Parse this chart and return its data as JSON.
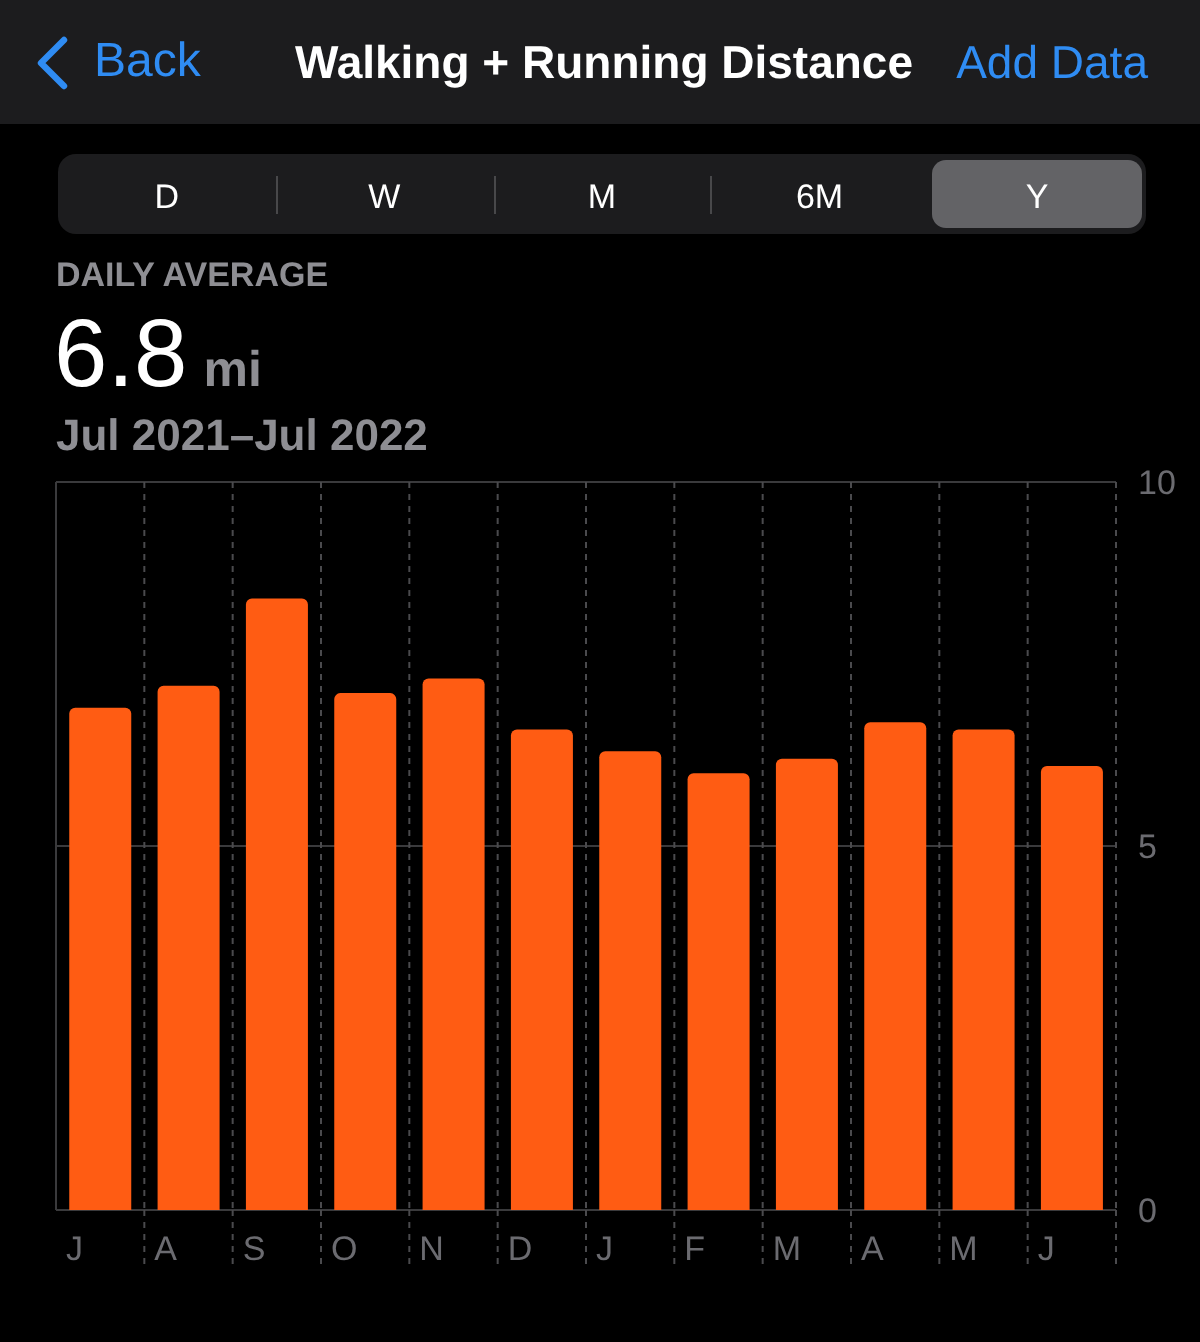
{
  "chart_data": {
    "type": "bar",
    "title": "Walking + Running Distance",
    "subtitle": "Jul 2021–Jul 2022",
    "annotations": [
      "Back",
      "Add Data",
      "D",
      "W",
      "M",
      "6M",
      "Y",
      "DAILY AVERAGE",
      "6.8",
      "mi"
    ],
    "categories": [
      "J",
      "A",
      "S",
      "O",
      "N",
      "D",
      "J",
      "F",
      "M",
      "A",
      "M",
      "J"
    ],
    "values": [
      6.9,
      7.2,
      8.4,
      7.1,
      7.3,
      6.6,
      6.3,
      6.0,
      6.2,
      6.7,
      6.6,
      6.1
    ],
    "color": "#ff5c13",
    "ylim": [
      0,
      10
    ],
    "yticks": [
      0,
      5,
      10
    ],
    "grid": true
  }
}
